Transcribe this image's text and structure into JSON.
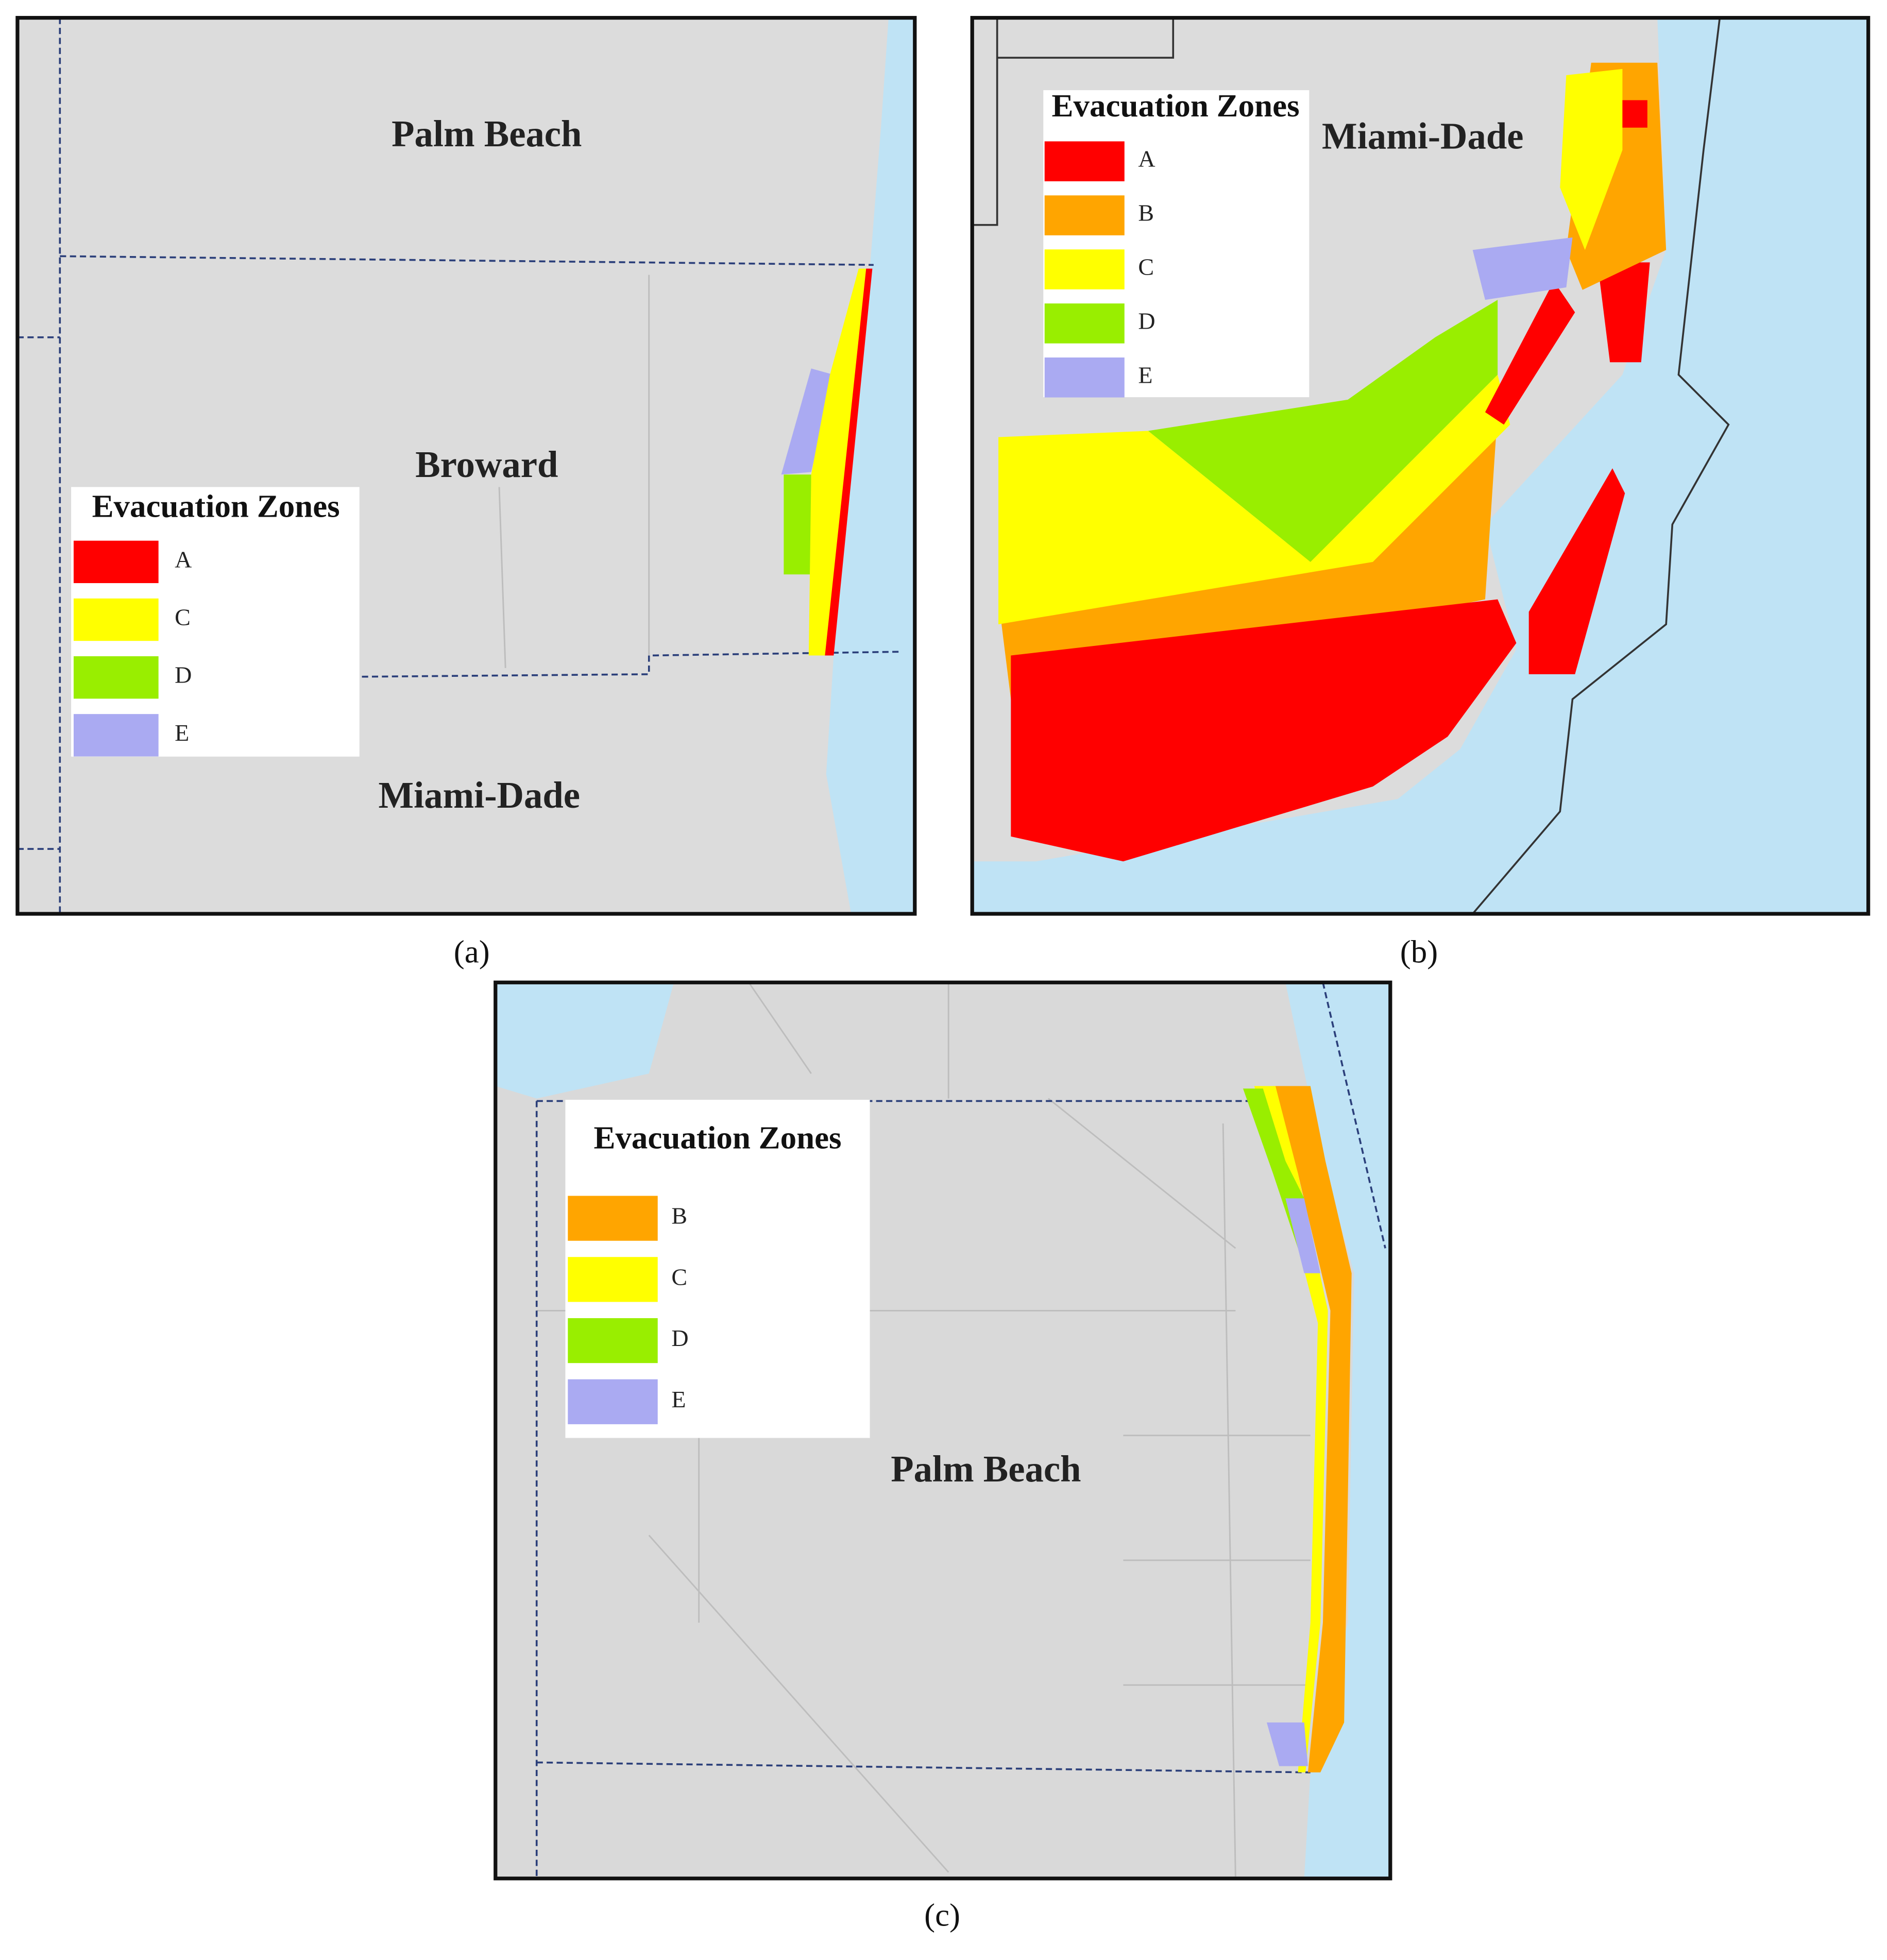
{
  "panels": [
    {
      "caption": "(a)",
      "place_labels": [
        "Palm Beach",
        "Broward",
        "Miami-Dade"
      ],
      "legend": {
        "title": "Evacuation Zones",
        "items": [
          {
            "label": "A",
            "color": "#ff0000"
          },
          {
            "label": "C",
            "color": "#ffff00"
          },
          {
            "label": "D",
            "color": "#99ee00"
          },
          {
            "label": "E",
            "color": "#aaaaf2"
          }
        ]
      }
    },
    {
      "caption": "(b)",
      "place_labels": [
        "Miami-Dade"
      ],
      "legend": {
        "title": "Evacuation Zones",
        "items": [
          {
            "label": "A",
            "color": "#ff0000"
          },
          {
            "label": "B",
            "color": "#ffa500"
          },
          {
            "label": "C",
            "color": "#ffff00"
          },
          {
            "label": "D",
            "color": "#99ee00"
          },
          {
            "label": "E",
            "color": "#aaaaf2"
          }
        ]
      }
    },
    {
      "caption": "(c)",
      "place_labels": [
        "Palm Beach"
      ],
      "legend": {
        "title": "Evacuation Zones",
        "items": [
          {
            "label": "B",
            "color": "#ffa500"
          },
          {
            "label": "C",
            "color": "#ffff00"
          },
          {
            "label": "D",
            "color": "#99ee00"
          },
          {
            "label": "E",
            "color": "#aaaaf2"
          }
        ]
      }
    }
  ]
}
